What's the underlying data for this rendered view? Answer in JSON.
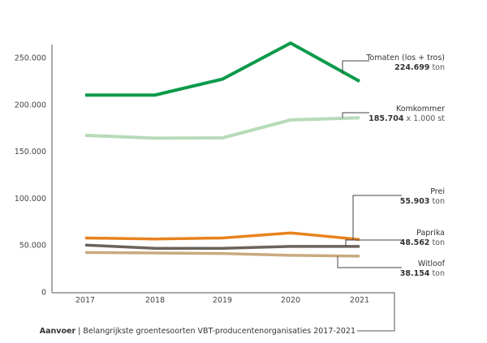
{
  "chart_data": {
    "type": "line",
    "title": "",
    "xlabel": "",
    "ylabel": "",
    "x": [
      "2017",
      "2018",
      "2019",
      "2020",
      "2021"
    ],
    "ylim": [
      0,
      250000
    ],
    "yticks": [
      0,
      50000,
      100000,
      150000,
      200000,
      250000
    ],
    "ytick_labels": [
      "0",
      "50.000",
      "100.000",
      "150.000",
      "200.000",
      "250.000"
    ],
    "grid": false,
    "series": [
      {
        "name": "Tomaten (los + tros)",
        "color": "#0b9a4b",
        "values": [
          210000,
          210000,
          227000,
          265500,
          224699
        ],
        "label_value": "224.699",
        "label_unit": "ton"
      },
      {
        "name": "Komkommer",
        "color": "#b6dbb8",
        "values": [
          167000,
          164000,
          164300,
          183500,
          185704
        ],
        "label_value": "185.704",
        "label_unit": "x 1.000 st"
      },
      {
        "name": "Prei",
        "color": "#e8821e",
        "values": [
          57500,
          56500,
          57500,
          63000,
          55903
        ],
        "label_value": "55.903",
        "label_unit": "ton"
      },
      {
        "name": "Paprika",
        "color": "#6b625a",
        "values": [
          50000,
          46500,
          46500,
          48500,
          48562
        ],
        "label_value": "48.562",
        "label_unit": "ton"
      },
      {
        "name": "Witloof",
        "color": "#c9aa7f",
        "values": [
          42000,
          41500,
          41000,
          39000,
          38154
        ],
        "label_value": "38.154",
        "label_unit": "ton"
      }
    ],
    "caption_bold": "Aanvoer",
    "caption_rest": " | Belangrijkste groentesoorten VBT-producentenorganisaties 2017-2021"
  }
}
